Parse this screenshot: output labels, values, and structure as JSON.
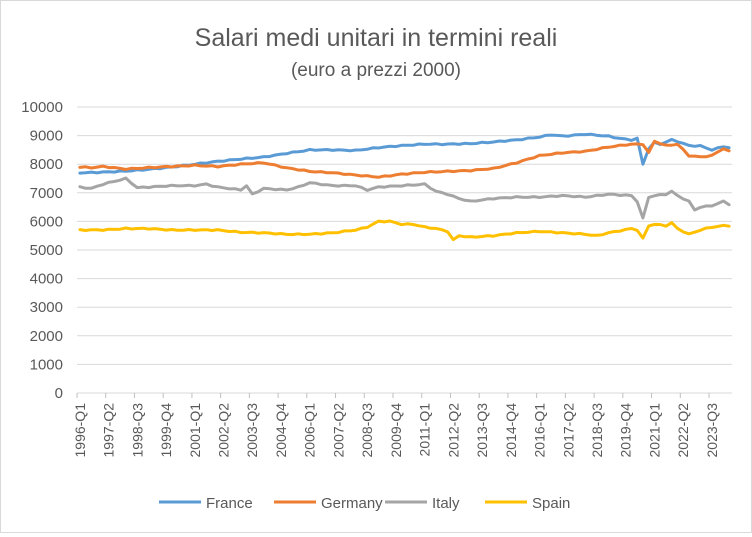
{
  "chart_data": {
    "type": "line",
    "title": "Salari medi unitari in termini reali",
    "subtitle": "(euro a prezzi 2000)",
    "xlabel": "",
    "ylabel": "",
    "ylim": [
      0,
      10000
    ],
    "yticks": [
      0,
      1000,
      2000,
      3000,
      4000,
      5000,
      6000,
      7000,
      8000,
      9000,
      10000
    ],
    "grid": true,
    "legend": "bottom",
    "x_start": "1996-Q1",
    "n_points": 114,
    "xtick_labels": [
      "1996-Q1",
      "1997-Q2",
      "1998-Q3",
      "1999-Q4",
      "2001-Q1",
      "2002-Q2",
      "2003-Q3",
      "2004-Q4",
      "2006-Q1",
      "2007-Q2",
      "2008-Q3",
      "2009-Q4",
      "2011-Q1",
      "2012-Q2",
      "2013-Q3",
      "2014-Q4",
      "2016-Q1",
      "2017-Q2",
      "2018-Q3",
      "2019-Q4",
      "2021-Q1",
      "2022-Q2",
      "2023-Q3"
    ],
    "series": [
      {
        "name": "France",
        "color": "#5b9bd5",
        "anchors": [
          [
            0,
            7700
          ],
          [
            4,
            7720
          ],
          [
            8,
            7760
          ],
          [
            12,
            7820
          ],
          [
            16,
            7900
          ],
          [
            20,
            8000
          ],
          [
            24,
            8100
          ],
          [
            28,
            8180
          ],
          [
            32,
            8250
          ],
          [
            36,
            8380
          ],
          [
            40,
            8500
          ],
          [
            44,
            8500
          ],
          [
            48,
            8480
          ],
          [
            52,
            8580
          ],
          [
            56,
            8650
          ],
          [
            60,
            8700
          ],
          [
            64,
            8700
          ],
          [
            68,
            8720
          ],
          [
            72,
            8780
          ],
          [
            76,
            8850
          ],
          [
            80,
            8950
          ],
          [
            82,
            9030
          ],
          [
            84,
            8980
          ],
          [
            88,
            9050
          ],
          [
            92,
            8980
          ],
          [
            94,
            8900
          ],
          [
            96,
            8850
          ],
          [
            97,
            8900
          ],
          [
            98,
            8000
          ],
          [
            99,
            8550
          ],
          [
            100,
            8750
          ],
          [
            101,
            8700
          ],
          [
            103,
            8850
          ],
          [
            104,
            8800
          ],
          [
            106,
            8650
          ],
          [
            108,
            8640
          ],
          [
            110,
            8500
          ],
          [
            112,
            8620
          ],
          [
            113,
            8580
          ]
        ]
      },
      {
        "name": "Germany",
        "color": "#ed7d31",
        "anchors": [
          [
            0,
            7900
          ],
          [
            2,
            7880
          ],
          [
            4,
            7920
          ],
          [
            8,
            7830
          ],
          [
            12,
            7880
          ],
          [
            16,
            7920
          ],
          [
            20,
            7960
          ],
          [
            24,
            7920
          ],
          [
            28,
            8000
          ],
          [
            32,
            8050
          ],
          [
            36,
            7870
          ],
          [
            40,
            7750
          ],
          [
            44,
            7700
          ],
          [
            48,
            7620
          ],
          [
            52,
            7550
          ],
          [
            56,
            7650
          ],
          [
            60,
            7720
          ],
          [
            64,
            7750
          ],
          [
            68,
            7780
          ],
          [
            72,
            7850
          ],
          [
            76,
            8050
          ],
          [
            80,
            8300
          ],
          [
            84,
            8400
          ],
          [
            88,
            8450
          ],
          [
            92,
            8600
          ],
          [
            96,
            8700
          ],
          [
            98,
            8700
          ],
          [
            99,
            8400
          ],
          [
            100,
            8800
          ],
          [
            102,
            8650
          ],
          [
            104,
            8700
          ],
          [
            106,
            8300
          ],
          [
            108,
            8250
          ],
          [
            110,
            8300
          ],
          [
            112,
            8550
          ],
          [
            113,
            8450
          ]
        ]
      },
      {
        "name": "Italy",
        "color": "#a5a5a5",
        "anchors": [
          [
            0,
            7200
          ],
          [
            2,
            7150
          ],
          [
            4,
            7300
          ],
          [
            6,
            7400
          ],
          [
            8,
            7500
          ],
          [
            10,
            7180
          ],
          [
            12,
            7200
          ],
          [
            16,
            7250
          ],
          [
            20,
            7250
          ],
          [
            22,
            7300
          ],
          [
            24,
            7200
          ],
          [
            28,
            7100
          ],
          [
            29,
            7250
          ],
          [
            30,
            6950
          ],
          [
            32,
            7150
          ],
          [
            36,
            7100
          ],
          [
            38,
            7200
          ],
          [
            40,
            7350
          ],
          [
            44,
            7250
          ],
          [
            48,
            7250
          ],
          [
            50,
            7100
          ],
          [
            52,
            7200
          ],
          [
            56,
            7250
          ],
          [
            60,
            7300
          ],
          [
            62,
            7050
          ],
          [
            64,
            6950
          ],
          [
            66,
            6800
          ],
          [
            68,
            6700
          ],
          [
            72,
            6800
          ],
          [
            76,
            6850
          ],
          [
            80,
            6850
          ],
          [
            84,
            6900
          ],
          [
            88,
            6850
          ],
          [
            92,
            6950
          ],
          [
            96,
            6900
          ],
          [
            97,
            6700
          ],
          [
            98,
            6100
          ],
          [
            99,
            6850
          ],
          [
            100,
            6900
          ],
          [
            102,
            6950
          ],
          [
            103,
            7050
          ],
          [
            104,
            6900
          ],
          [
            106,
            6700
          ],
          [
            107,
            6400
          ],
          [
            108,
            6500
          ],
          [
            110,
            6550
          ],
          [
            112,
            6700
          ],
          [
            113,
            6600
          ]
        ]
      },
      {
        "name": "Spain",
        "color": "#ffc000",
        "anchors": [
          [
            0,
            5700
          ],
          [
            4,
            5700
          ],
          [
            8,
            5750
          ],
          [
            12,
            5750
          ],
          [
            16,
            5700
          ],
          [
            20,
            5700
          ],
          [
            24,
            5700
          ],
          [
            28,
            5620
          ],
          [
            32,
            5600
          ],
          [
            36,
            5550
          ],
          [
            40,
            5550
          ],
          [
            44,
            5600
          ],
          [
            48,
            5700
          ],
          [
            50,
            5800
          ],
          [
            52,
            6000
          ],
          [
            54,
            6000
          ],
          [
            56,
            5900
          ],
          [
            58,
            5900
          ],
          [
            60,
            5800
          ],
          [
            62,
            5750
          ],
          [
            64,
            5650
          ],
          [
            65,
            5350
          ],
          [
            66,
            5500
          ],
          [
            68,
            5450
          ],
          [
            72,
            5500
          ],
          [
            76,
            5600
          ],
          [
            80,
            5650
          ],
          [
            84,
            5600
          ],
          [
            88,
            5550
          ],
          [
            90,
            5500
          ],
          [
            92,
            5600
          ],
          [
            96,
            5750
          ],
          [
            97,
            5700
          ],
          [
            98,
            5400
          ],
          [
            99,
            5850
          ],
          [
            100,
            5900
          ],
          [
            102,
            5850
          ],
          [
            103,
            5950
          ],
          [
            104,
            5750
          ],
          [
            106,
            5550
          ],
          [
            108,
            5700
          ],
          [
            110,
            5800
          ],
          [
            112,
            5850
          ],
          [
            113,
            5850
          ]
        ]
      }
    ]
  }
}
